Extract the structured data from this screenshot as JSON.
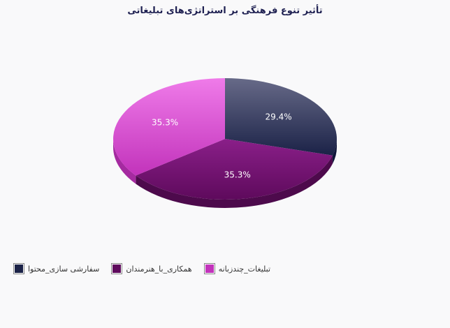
{
  "chart_data": {
    "type": "pie",
    "title": "تأثیر تنوع فرهنگی بر استراتژی‌های تبلیغاتی",
    "series": [
      {
        "name": "سفارشی سازی_محتوا",
        "value": 29.4,
        "label": "29.4%",
        "color_top": "#676a88",
        "color_bottom": "#1b2247",
        "color_side": "#10163a"
      },
      {
        "name": "همکاری_با_هنرمندان",
        "value": 35.3,
        "label": "35.3%",
        "color_top": "#8a1f89",
        "color_bottom": "#5e0a5c",
        "color_side": "#4d0a4c"
      },
      {
        "name": "تبلیغات_چندزبانه",
        "value": 35.3,
        "label": "35.3%",
        "color_top": "#ef7be9",
        "color_bottom": "#c233bb",
        "color_side": "#a52aa0"
      }
    ],
    "legend_position": "bottom-left"
  }
}
